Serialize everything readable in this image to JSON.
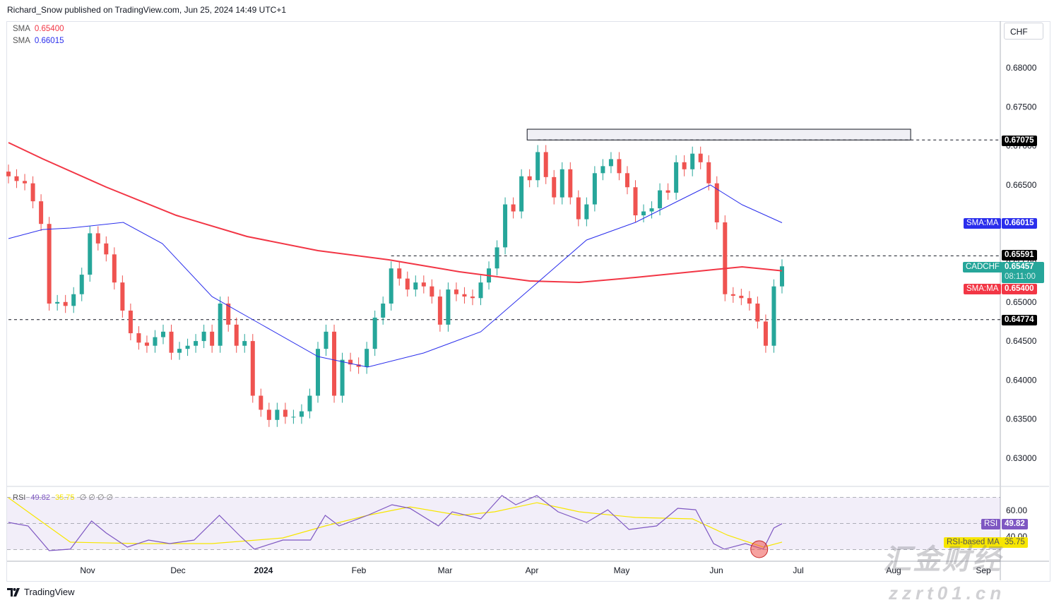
{
  "header": {
    "published": "Richard_Snow published on TradingView.com, Jun 25, 2024 14:49 UTC+1"
  },
  "legend": [
    {
      "label": "SMA",
      "value": "0.65400",
      "color": "#f23645"
    },
    {
      "label": "SMA",
      "value": "0.66015",
      "color": "#2a2eec"
    }
  ],
  "currency_button": "CHF",
  "chart_data": {
    "type": "candlestick",
    "symbol": "CADCHF",
    "price_axis": {
      "range": [
        0.628,
        0.685
      ],
      "ticks": [
        "0.68000",
        "0.67500",
        "0.67000",
        "0.66500",
        "0.66000",
        "0.65500",
        "0.65000",
        "0.64500",
        "0.64000",
        "0.63500",
        "0.63000"
      ]
    },
    "time_axis": {
      "labels": [
        "Nov",
        "Dec",
        "2024",
        "Feb",
        "Mar",
        "Apr",
        "May",
        "Jun",
        "Jul",
        "Aug",
        "Sep"
      ]
    },
    "closes": [
      0.6661,
      0.6655,
      0.6652,
      0.6629,
      0.66,
      0.6498,
      0.65,
      0.6495,
      0.651,
      0.6535,
      0.6588,
      0.6575,
      0.6561,
      0.6525,
      0.6489,
      0.646,
      0.6448,
      0.6444,
      0.6455,
      0.6462,
      0.6435,
      0.644,
      0.6444,
      0.645,
      0.6462,
      0.6444,
      0.6498,
      0.6471,
      0.6444,
      0.645,
      0.638,
      0.6362,
      0.6349,
      0.6362,
      0.6353,
      0.6353,
      0.636,
      0.638,
      0.644,
      0.6462,
      0.638,
      0.6426,
      0.642,
      0.6417,
      0.644,
      0.648,
      0.6498,
      0.6543,
      0.653,
      0.6516,
      0.6525,
      0.652,
      0.6507,
      0.6471,
      0.6516,
      0.651,
      0.6507,
      0.6505,
      0.6525,
      0.6543,
      0.657,
      0.6625,
      0.6616,
      0.6661,
      0.6656,
      0.6692,
      0.666,
      0.6634,
      0.667,
      0.6634,
      0.6606,
      0.6625,
      0.6665,
      0.6674,
      0.6683,
      0.6665,
      0.6647,
      0.6611,
      0.6616,
      0.662,
      0.6643,
      0.664,
      0.6679,
      0.667,
      0.669,
      0.6679,
      0.6652,
      0.6602,
      0.651,
      0.6508,
      0.6505,
      0.6498,
      0.6475,
      0.6444,
      0.652,
      0.65457
    ],
    "sma_200": {
      "color": "#f23645",
      "points": [
        [
          0,
          0.67042
        ],
        [
          4.2,
          0.66834
        ],
        [
          12,
          0.66472
        ],
        [
          20.6,
          0.6611
        ],
        [
          29.3,
          0.65839
        ],
        [
          38,
          0.65658
        ],
        [
          46.7,
          0.65541
        ],
        [
          55.4,
          0.65387
        ],
        [
          64,
          0.65269
        ],
        [
          70.1,
          0.65251
        ],
        [
          77,
          0.65315
        ],
        [
          85.7,
          0.65405
        ],
        [
          90.1,
          0.6545
        ],
        [
          95,
          0.654
        ]
      ]
    },
    "sma_50": {
      "color": "#2a2eec",
      "points": [
        [
          0,
          0.65812
        ],
        [
          4.2,
          0.65929
        ],
        [
          7.6,
          0.65948
        ],
        [
          14.1,
          0.6602
        ],
        [
          18.9,
          0.65749
        ],
        [
          25,
          0.6507
        ],
        [
          31.1,
          0.64709
        ],
        [
          38,
          0.64302
        ],
        [
          44.1,
          0.64166
        ],
        [
          51,
          0.64347
        ],
        [
          58,
          0.64618
        ],
        [
          64,
          0.65161
        ],
        [
          71,
          0.65794
        ],
        [
          77,
          0.6602
        ],
        [
          82.2,
          0.66291
        ],
        [
          86.2,
          0.66499
        ],
        [
          90.1,
          0.66246
        ],
        [
          95,
          0.66015
        ]
      ]
    },
    "resistance_zone": {
      "from_bar": 63.7,
      "to_bar": 110.8,
      "low": 0.67075,
      "high": 0.67213
    },
    "horizontal_levels": [
      {
        "value": "0.67075",
        "from_bar": 65
      },
      {
        "value": "0.65591",
        "from_bar": 47
      },
      {
        "value": "0.64774",
        "from_bar": 0
      }
    ],
    "up_color": "#26a69a",
    "down_color": "#ef5350"
  },
  "badges": {
    "sma50": {
      "label": "SMA:MA",
      "value": "0.66015"
    },
    "last": {
      "label": "CADCHF",
      "value": "0.65457",
      "countdown": "08:11:00"
    },
    "sma200": {
      "label": "SMA:MA",
      "value": "0.65400"
    }
  },
  "rsi": {
    "legend": {
      "label": "RSI",
      "rsi": "49.82",
      "ma": "35.75",
      "extra": "∅ ∅ ∅ ∅"
    },
    "axis_ticks": [
      "60.00",
      "40.00"
    ],
    "bands": [
      70,
      30
    ],
    "rsi_color": "#7e57c2",
    "ma_color": "#f7e600",
    "rsi_points": [
      [
        0,
        50.8
      ],
      [
        2.4,
        48.1
      ],
      [
        5,
        29.2
      ],
      [
        7.6,
        30.3
      ],
      [
        10.2,
        51.9
      ],
      [
        12,
        42.7
      ],
      [
        14.6,
        31.9
      ],
      [
        17.2,
        37.3
      ],
      [
        19.8,
        34.6
      ],
      [
        22.8,
        37.3
      ],
      [
        25.9,
        56.2
      ],
      [
        28.5,
        40
      ],
      [
        30.2,
        30.3
      ],
      [
        33.7,
        37.3
      ],
      [
        37.1,
        37.3
      ],
      [
        38.9,
        56.2
      ],
      [
        40.6,
        48.1
      ],
      [
        44.1,
        56.2
      ],
      [
        47.1,
        64.3
      ],
      [
        49.3,
        61.6
      ],
      [
        52.8,
        48.1
      ],
      [
        54.5,
        58.9
      ],
      [
        58,
        53.5
      ],
      [
        60.6,
        71.4
      ],
      [
        62.3,
        64.3
      ],
      [
        64.9,
        71.4
      ],
      [
        67.5,
        58.9
      ],
      [
        71,
        50.8
      ],
      [
        73.6,
        60.5
      ],
      [
        76.2,
        45.4
      ],
      [
        79.6,
        48.1
      ],
      [
        82.2,
        61.6
      ],
      [
        84.4,
        60.5
      ],
      [
        86.6,
        34.6
      ],
      [
        87.9,
        30.3
      ],
      [
        90.5,
        34.6
      ],
      [
        92.7,
        30.3
      ],
      [
        94,
        46.5
      ],
      [
        95,
        49.82
      ]
    ],
    "ma_points": [
      [
        0,
        69.7
      ],
      [
        4.2,
        50.8
      ],
      [
        7.6,
        35.7
      ],
      [
        16.3,
        34.6
      ],
      [
        25,
        34.6
      ],
      [
        33.7,
        38.9
      ],
      [
        38.9,
        48.1
      ],
      [
        44.1,
        56.2
      ],
      [
        49.3,
        62.7
      ],
      [
        55.4,
        56.2
      ],
      [
        59.7,
        58.9
      ],
      [
        64.9,
        65.9
      ],
      [
        70.1,
        58.9
      ],
      [
        77,
        54.6
      ],
      [
        84,
        53.5
      ],
      [
        88.3,
        41.1
      ],
      [
        92.7,
        31.9
      ],
      [
        95,
        35.75
      ]
    ],
    "badge_rsi": {
      "label": "RSI",
      "value": "49.82"
    },
    "badge_ma": {
      "label": "RSI-based MA",
      "value": "35.75"
    }
  },
  "footer": {
    "brand": "TradingView"
  },
  "watermark": {
    "line1": "汇金财经",
    "line2": "zzrt01.cn"
  }
}
